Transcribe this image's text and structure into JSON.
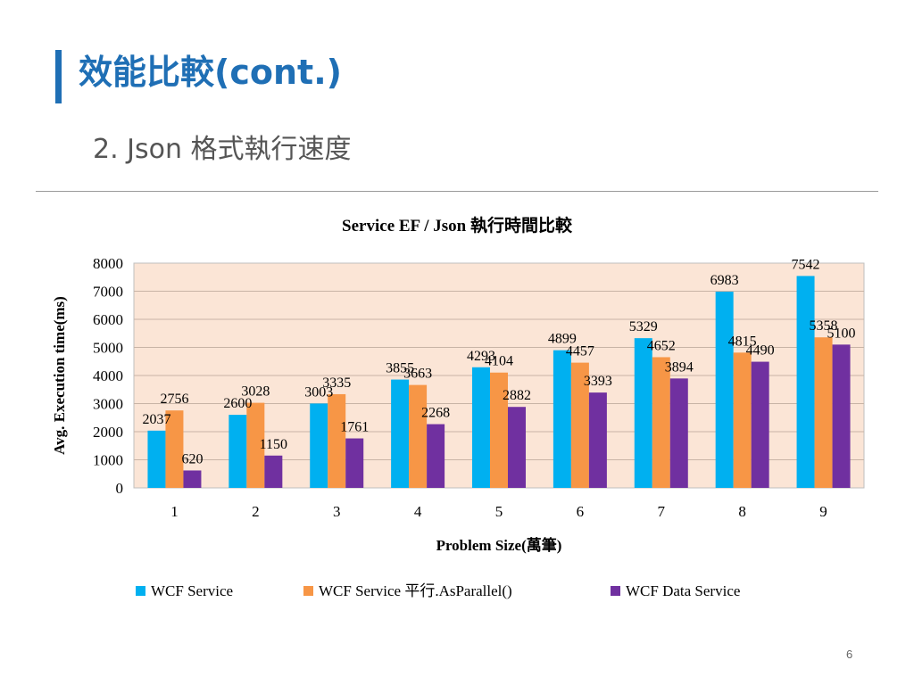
{
  "slide": {
    "title": "效能比較(cont.)",
    "subtitle": "2.  Json 格式執行速度",
    "page_number": "6"
  },
  "colors": {
    "title": "#1f6fb5",
    "plot_background": "#fbe5d6",
    "gridline": "#c8b4a6"
  },
  "chart_data": {
    "type": "bar",
    "title": "Service EF / Json 執行時間比較",
    "xlabel": "Problem Size(萬筆)",
    "ylabel": "Avg. Execution time(ms)",
    "ylim": [
      0,
      8000
    ],
    "yticks": [
      "0",
      "1000",
      "2000",
      "3000",
      "4000",
      "5000",
      "6000",
      "7000",
      "8000"
    ],
    "categories": [
      "1",
      "2",
      "3",
      "4",
      "5",
      "6",
      "7",
      "8",
      "9"
    ],
    "grid": true,
    "legend_position": "bottom",
    "series": [
      {
        "name": "WCF Service",
        "color": "#00b0f0",
        "values": [
          2037,
          2600,
          3003,
          3855,
          4293,
          4899,
          5329,
          6983,
          7542
        ]
      },
      {
        "name": "WCF Service 平行.AsParallel()",
        "color": "#f79646",
        "values": [
          2756,
          3028,
          3335,
          3663,
          4104,
          4457,
          4652,
          4815,
          5358
        ]
      },
      {
        "name": "WCF Data Service",
        "color": "#7030a0",
        "values": [
          620,
          1150,
          1761,
          2268,
          2882,
          3393,
          3894,
          4490,
          5100
        ]
      }
    ]
  }
}
